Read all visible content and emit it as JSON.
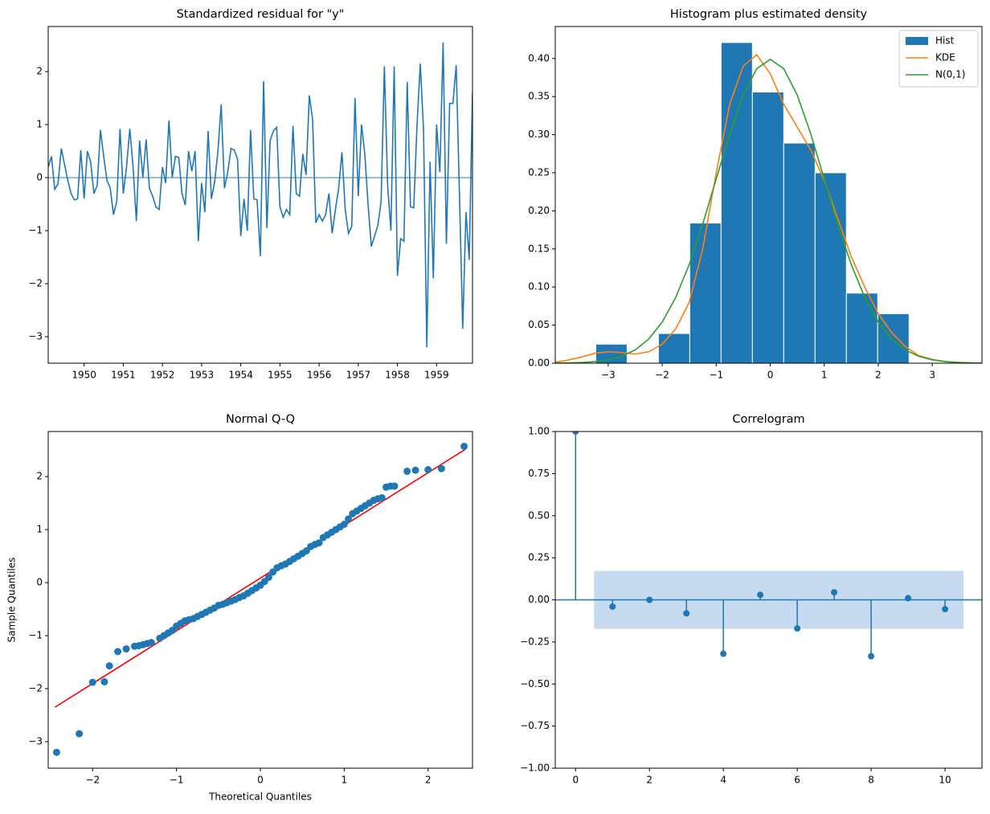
{
  "chart_data": [
    {
      "type": "line",
      "title": "Standardized residual for \"y\"",
      "color": "#1f77b4",
      "x": [
        "1949-02",
        "1949-03",
        "1949-04",
        "1949-05",
        "1949-06",
        "1949-07",
        "1949-08",
        "1949-09",
        "1949-10",
        "1949-11",
        "1949-12",
        "1950-01",
        "1950-02",
        "1950-03",
        "1950-04",
        "1950-05",
        "1950-06",
        "1950-07",
        "1950-08",
        "1950-09",
        "1950-10",
        "1950-11",
        "1950-12",
        "1951-01",
        "1951-02",
        "1951-03",
        "1951-04",
        "1951-05",
        "1951-06",
        "1951-07",
        "1951-08",
        "1951-09",
        "1951-10",
        "1951-11",
        "1951-12",
        "1952-01",
        "1952-02",
        "1952-03",
        "1952-04",
        "1952-05",
        "1952-06",
        "1952-07",
        "1952-08",
        "1952-09",
        "1952-10",
        "1952-11",
        "1952-12",
        "1953-01",
        "1953-02",
        "1953-03",
        "1953-04",
        "1953-05",
        "1953-06",
        "1953-07",
        "1953-08",
        "1953-09",
        "1953-10",
        "1953-11",
        "1953-12",
        "1954-01",
        "1954-02",
        "1954-03",
        "1954-04",
        "1954-05",
        "1954-06",
        "1954-07",
        "1954-08",
        "1954-09",
        "1954-10",
        "1954-11",
        "1954-12",
        "1955-01",
        "1955-02",
        "1955-03",
        "1955-04",
        "1955-05",
        "1955-06",
        "1955-07",
        "1955-08",
        "1955-09",
        "1955-10",
        "1955-11",
        "1955-12",
        "1956-01",
        "1956-02",
        "1956-03",
        "1956-04",
        "1956-05",
        "1956-06",
        "1956-07",
        "1956-08",
        "1956-09",
        "1956-10",
        "1956-11",
        "1956-12",
        "1957-01",
        "1957-02",
        "1957-03",
        "1957-04",
        "1957-05",
        "1957-06",
        "1957-07",
        "1957-08",
        "1957-09",
        "1957-10",
        "1957-11",
        "1957-12",
        "1958-01",
        "1958-02",
        "1958-03",
        "1958-04",
        "1958-05",
        "1958-06",
        "1958-07",
        "1958-08",
        "1958-09",
        "1958-10",
        "1958-11",
        "1958-12",
        "1959-01",
        "1959-02",
        "1959-03",
        "1959-04",
        "1959-05",
        "1959-06",
        "1959-07",
        "1959-08",
        "1959-09",
        "1959-10",
        "1959-11",
        "1959-12"
      ],
      "values": [
        0.2,
        0.4,
        -0.22,
        -0.12,
        0.55,
        0.25,
        -0.05,
        -0.3,
        -0.42,
        -0.4,
        0.52,
        -0.4,
        0.5,
        0.3,
        -0.3,
        -0.15,
        0.9,
        0.4,
        -0.05,
        -0.2,
        -0.7,
        -0.45,
        0.92,
        -0.3,
        0.2,
        0.92,
        0.2,
        -0.82,
        0.7,
        0,
        0.72,
        -0.2,
        -0.35,
        -0.55,
        -0.6,
        0.2,
        -0.1,
        1.08,
        0,
        0.4,
        0.38,
        -0.3,
        -0.52,
        0.5,
        0.12,
        0.5,
        -1.2,
        -0.1,
        -0.65,
        0.88,
        -0.4,
        -0.08,
        0.5,
        1.38,
        -0.2,
        0.1,
        0.55,
        0.52,
        0.35,
        -1.1,
        -0.4,
        -1.0,
        0.9,
        -0.4,
        -0.42,
        -1.48,
        1.82,
        -0.95,
        0.7,
        0.88,
        0.95,
        -0.55,
        -0.75,
        -0.6,
        -0.7,
        0.98,
        -0.3,
        -0.35,
        0.45,
        0.05,
        1.55,
        1.1,
        -0.85,
        -0.7,
        -0.82,
        -0.7,
        -0.3,
        -1.05,
        -0.6,
        -0.2,
        0.48,
        -0.6,
        -1.05,
        -0.92,
        1.5,
        -0.35,
        1.0,
        0.45,
        -0.5,
        -1.3,
        -1.1,
        -0.9,
        -0.45,
        2.1,
        -0.15,
        -1.0,
        2.1,
        -1.85,
        -1.15,
        -1.2,
        1.8,
        -0.55,
        -0.57,
        1.0,
        2.15,
        0.9,
        -3.2,
        0.3,
        -1.9,
        1.0,
        0.1,
        2.55,
        -1.25,
        1.4,
        1.4,
        2.12,
        -0.3,
        -2.85,
        -0.65,
        -1.55,
        1.6
      ],
      "hline": 0,
      "xlim": [
        "1949-02",
        "1959-12"
      ],
      "xticks": [
        {
          "value": "1950-01",
          "label": "1950"
        },
        {
          "value": "1951-01",
          "label": "1951"
        },
        {
          "value": "1952-01",
          "label": "1952"
        },
        {
          "value": "1953-01",
          "label": "1953"
        },
        {
          "value": "1954-01",
          "label": "1954"
        },
        {
          "value": "1955-01",
          "label": "1955"
        },
        {
          "value": "1956-01",
          "label": "1956"
        },
        {
          "value": "1957-01",
          "label": "1957"
        },
        {
          "value": "1958-01",
          "label": "1958"
        },
        {
          "value": "1959-01",
          "label": "1959"
        }
      ],
      "ylim": [
        -3.5,
        2.85
      ],
      "yticks": [
        {
          "value": -3,
          "label": "−3"
        },
        {
          "value": -2,
          "label": "−2"
        },
        {
          "value": -1,
          "label": "−1"
        },
        0,
        1,
        2
      ]
    },
    {
      "type": "histogram",
      "title": "Histogram plus estimated density",
      "hist": {
        "name": "Hist",
        "color": "#1f77b4",
        "bins": [
          -3.23,
          -2.65,
          -2.07,
          -1.49,
          -0.91,
          -0.33,
          0.25,
          0.83,
          1.41,
          1.99,
          2.57
        ],
        "values": [
          0.025,
          0,
          0.039,
          0.184,
          0.421,
          0.356,
          0.289,
          0.25,
          0.092,
          0.065
        ]
      },
      "series": [
        {
          "name": "KDE",
          "color": "#ff7f0e",
          "x": [
            -4,
            -3.75,
            -3.5,
            -3.25,
            -3,
            -2.75,
            -2.5,
            -2.25,
            -2,
            -1.75,
            -1.5,
            -1.25,
            -1,
            -0.75,
            -0.5,
            -0.25,
            0,
            0.25,
            0.5,
            0.75,
            1,
            1.25,
            1.5,
            1.75,
            2,
            2.25,
            2.5,
            2.75,
            3,
            3.25,
            3.5,
            3.75,
            4
          ],
          "values": [
            0.001,
            0.004,
            0.008,
            0.013,
            0.015,
            0.014,
            0.012,
            0.015,
            0.025,
            0.045,
            0.08,
            0.15,
            0.25,
            0.34,
            0.39,
            0.405,
            0.38,
            0.34,
            0.31,
            0.28,
            0.24,
            0.19,
            0.14,
            0.1,
            0.065,
            0.04,
            0.022,
            0.01,
            0.005,
            0.002,
            0.001,
            0.0003,
            0.0001
          ]
        },
        {
          "name": "N(0,1)",
          "color": "#2ca02c",
          "x": [
            -4,
            -3.75,
            -3.5,
            -3.25,
            -3,
            -2.75,
            -2.5,
            -2.25,
            -2,
            -1.75,
            -1.5,
            -1.25,
            -1,
            -0.75,
            -0.5,
            -0.25,
            0,
            0.25,
            0.5,
            0.75,
            1,
            1.25,
            1.5,
            1.75,
            2,
            2.25,
            2.5,
            2.75,
            3,
            3.25,
            3.5,
            3.75,
            4
          ],
          "values": [
            0.0001,
            0.0004,
            0.0009,
            0.002,
            0.0044,
            0.0091,
            0.0175,
            0.0317,
            0.054,
            0.0863,
            0.1295,
            0.1826,
            0.242,
            0.3011,
            0.3521,
            0.3867,
            0.3989,
            0.3867,
            0.3521,
            0.3011,
            0.242,
            0.1826,
            0.1295,
            0.0863,
            0.054,
            0.0317,
            0.0175,
            0.0091,
            0.0044,
            0.002,
            0.0009,
            0.0004,
            0.0001
          ]
        }
      ],
      "legend": "upper right",
      "xlim": [
        -3.98,
        3.92
      ],
      "xticks": [
        {
          "value": -3,
          "label": "−3"
        },
        {
          "value": -2,
          "label": "−2"
        },
        {
          "value": -1,
          "label": "−1"
        },
        0,
        1,
        2,
        3
      ],
      "ylim": [
        0,
        0.442
      ],
      "yticks": [
        {
          "value": 0,
          "label": "0.00"
        },
        {
          "value": 0.05,
          "label": "0.05"
        },
        {
          "value": 0.1,
          "label": "0.10"
        },
        {
          "value": 0.15,
          "label": "0.15"
        },
        {
          "value": 0.2,
          "label": "0.20"
        },
        {
          "value": 0.25,
          "label": "0.25"
        },
        {
          "value": 0.3,
          "label": "0.30"
        },
        {
          "value": 0.35,
          "label": "0.35"
        },
        {
          "value": 0.4,
          "label": "0.40"
        }
      ]
    },
    {
      "type": "scatter",
      "title": "Normal Q-Q",
      "x_label": "Theoretical Quantiles",
      "y_label": "Sample Quantiles",
      "color": "#1f77b4",
      "x": [
        -2.43,
        -2.16,
        -2.0,
        -1.86,
        -1.8,
        -1.7,
        -1.6,
        -1.5,
        -1.45,
        -1.4,
        -1.35,
        -1.3,
        -1.2,
        -1.15,
        -1.1,
        -1.05,
        -1.0,
        -0.95,
        -0.9,
        -0.85,
        -0.8,
        -0.75,
        -0.7,
        -0.65,
        -0.6,
        -0.55,
        -0.5,
        -0.45,
        -0.4,
        -0.35,
        -0.3,
        -0.25,
        -0.2,
        -0.15,
        -0.1,
        -0.05,
        0,
        0.05,
        0.1,
        0.15,
        0.2,
        0.25,
        0.3,
        0.35,
        0.4,
        0.45,
        0.5,
        0.55,
        0.6,
        0.65,
        0.7,
        0.75,
        0.8,
        0.85,
        0.9,
        0.95,
        1.0,
        1.05,
        1.1,
        1.15,
        1.2,
        1.25,
        1.3,
        1.35,
        1.4,
        1.45,
        1.5,
        1.55,
        1.6,
        1.75,
        1.85,
        2.0,
        2.16,
        2.43
      ],
      "values": [
        -3.2,
        -2.85,
        -1.88,
        -1.87,
        -1.57,
        -1.3,
        -1.25,
        -1.2,
        -1.19,
        -1.17,
        -1.15,
        -1.13,
        -1.05,
        -1.0,
        -0.95,
        -0.9,
        -0.82,
        -0.77,
        -0.72,
        -0.7,
        -0.68,
        -0.64,
        -0.6,
        -0.56,
        -0.52,
        -0.48,
        -0.43,
        -0.41,
        -0.38,
        -0.35,
        -0.32,
        -0.28,
        -0.25,
        -0.2,
        -0.15,
        -0.1,
        -0.05,
        0.02,
        0.1,
        0.2,
        0.28,
        0.32,
        0.35,
        0.4,
        0.45,
        0.5,
        0.55,
        0.6,
        0.68,
        0.72,
        0.75,
        0.85,
        0.9,
        0.95,
        1.0,
        1.05,
        1.1,
        1.2,
        1.3,
        1.35,
        1.4,
        1.45,
        1.5,
        1.55,
        1.58,
        1.6,
        1.8,
        1.82,
        1.82,
        2.1,
        2.12,
        2.13,
        2.15,
        2.57
      ],
      "line": {
        "color": "#ff0000",
        "x": [
          -2.45,
          2.45
        ],
        "y": [
          -2.35,
          2.52
        ]
      },
      "xlim": [
        -2.53,
        2.53
      ],
      "xticks": [
        {
          "value": -2,
          "label": "−2"
        },
        {
          "value": -1,
          "label": "−1"
        },
        0,
        1,
        2
      ],
      "ylim": [
        -3.5,
        2.85
      ],
      "yticks": [
        {
          "value": -3,
          "label": "−3"
        },
        {
          "value": -2,
          "label": "−2"
        },
        {
          "value": -1,
          "label": "−1"
        },
        0,
        1,
        2
      ]
    },
    {
      "type": "stem",
      "title": "Correlogram",
      "color": "#1f77b4",
      "x": [
        0,
        1,
        2,
        3,
        4,
        5,
        6,
        7,
        8,
        9,
        10
      ],
      "values": [
        1,
        -0.04,
        0.0,
        -0.08,
        -0.32,
        0.03,
        -0.17,
        0.045,
        -0.335,
        0.01,
        -0.055
      ],
      "confidence_band": {
        "x": [
          0.5,
          10.5
        ],
        "lower": -0.172,
        "upper": 0.172,
        "color": "#c6dbef"
      },
      "hline": 0,
      "xlim": [
        -0.55,
        11
      ],
      "xticks": [
        0,
        2,
        4,
        6,
        8,
        10
      ],
      "ylim": [
        -1,
        1
      ],
      "yticks": [
        {
          "value": -1,
          "label": "−1.00"
        },
        {
          "value": -0.75,
          "label": "−0.75"
        },
        {
          "value": -0.5,
          "label": "−0.50"
        },
        {
          "value": -0.25,
          "label": "−0.25"
        },
        {
          "value": 0,
          "label": "0.00"
        },
        {
          "value": 0.25,
          "label": "0.25"
        },
        {
          "value": 0.5,
          "label": "0.50"
        },
        {
          "value": 0.75,
          "label": "0.75"
        },
        {
          "value": 1,
          "label": "1.00"
        }
      ]
    }
  ]
}
